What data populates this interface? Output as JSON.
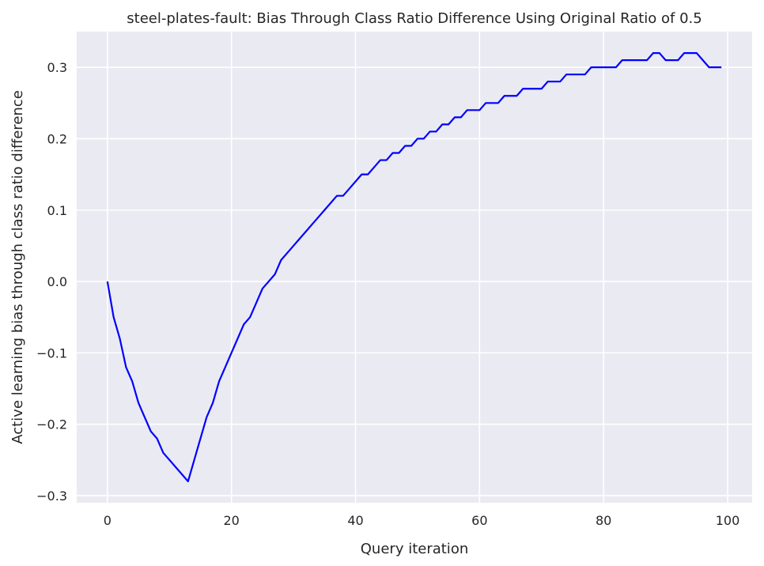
{
  "chart_data": {
    "type": "line",
    "title": "steel-plates-fault: Bias Through Class Ratio Difference Using Original Ratio of 0.5",
    "xlabel": "Query iteration",
    "ylabel": "Active learning bias through class ratio difference",
    "xlim": [
      -4.95,
      103.95
    ],
    "ylim": [
      -0.31,
      0.35
    ],
    "xticks": [
      0,
      20,
      40,
      60,
      80,
      100
    ],
    "yticks": [
      -0.3,
      -0.2,
      -0.1,
      0.0,
      0.1,
      0.2,
      0.3
    ],
    "xtick_labels": [
      "0",
      "20",
      "40",
      "60",
      "80",
      "100"
    ],
    "ytick_labels": [
      "−0.3",
      "−0.2",
      "−0.1",
      "0.0",
      "0.1",
      "0.2",
      "0.3"
    ],
    "grid": true,
    "background": "#eaeaf2",
    "grid_color": "#ffffff",
    "series": [
      {
        "color": "#0000ff",
        "x": [
          0,
          1,
          2,
          3,
          4,
          5,
          6,
          7,
          8,
          9,
          10,
          11,
          12,
          13,
          14,
          15,
          16,
          17,
          18,
          19,
          20,
          21,
          22,
          23,
          24,
          25,
          26,
          27,
          28,
          29,
          30,
          31,
          32,
          33,
          34,
          35,
          36,
          37,
          38,
          39,
          40,
          41,
          42,
          43,
          44,
          45,
          46,
          47,
          48,
          49,
          50,
          51,
          52,
          53,
          54,
          55,
          56,
          57,
          58,
          59,
          60,
          61,
          62,
          63,
          64,
          65,
          66,
          67,
          68,
          69,
          70,
          71,
          72,
          73,
          74,
          75,
          76,
          77,
          78,
          79,
          80,
          81,
          82,
          83,
          84,
          85,
          86,
          87,
          88,
          89,
          90,
          91,
          92,
          93,
          94,
          95,
          96,
          97,
          98,
          99
        ],
        "y": [
          0.0,
          -0.05,
          -0.08,
          -0.12,
          -0.14,
          -0.17,
          -0.19,
          -0.21,
          -0.22,
          -0.24,
          -0.25,
          -0.26,
          -0.27,
          -0.28,
          -0.25,
          -0.22,
          -0.19,
          -0.17,
          -0.14,
          -0.12,
          -0.1,
          -0.08,
          -0.06,
          -0.05,
          -0.03,
          -0.01,
          0.0,
          0.01,
          0.03,
          0.04,
          0.05,
          0.06,
          0.07,
          0.08,
          0.09,
          0.1,
          0.11,
          0.12,
          0.12,
          0.13,
          0.14,
          0.15,
          0.15,
          0.16,
          0.17,
          0.17,
          0.18,
          0.18,
          0.19,
          0.19,
          0.2,
          0.2,
          0.21,
          0.21,
          0.22,
          0.22,
          0.23,
          0.23,
          0.24,
          0.24,
          0.24,
          0.25,
          0.25,
          0.25,
          0.26,
          0.26,
          0.26,
          0.27,
          0.27,
          0.27,
          0.27,
          0.28,
          0.28,
          0.28,
          0.29,
          0.29,
          0.29,
          0.29,
          0.3,
          0.3,
          0.3,
          0.3,
          0.3,
          0.31,
          0.31,
          0.31,
          0.31,
          0.31,
          0.32,
          0.32,
          0.31,
          0.31,
          0.31,
          0.32,
          0.32,
          0.32,
          0.31,
          0.3,
          0.3,
          0.3
        ]
      }
    ]
  }
}
